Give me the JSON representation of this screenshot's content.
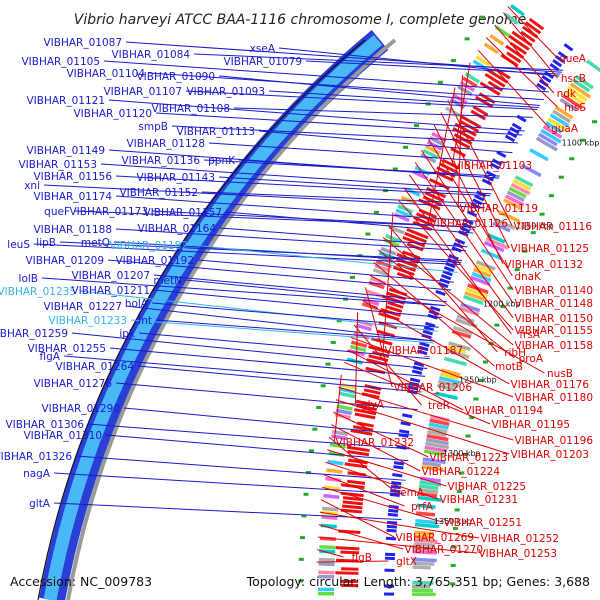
{
  "title": "Vibrio harveyi ATCC BAA-1116 chromosome I, complete genome",
  "footer": {
    "accession": "Accession: NC_009783",
    "summary": "Topology: circular; Length: 3,765,351 bp; Genes: 3,688"
  },
  "colors": {
    "blue_label": "#1a1acc",
    "cyan_label": "#33b5e5",
    "red_label": "#dd0000",
    "backbone": "#3fa9f5",
    "forward": "#2222ee",
    "reverse": "#ee1111"
  },
  "kbp_ticks": [
    "1100 kbp",
    "1150 kbp",
    "1200 kbp",
    "1250 kbp",
    "1300 kbp",
    "1350 kbp"
  ],
  "labels_left": [
    {
      "text": "VIBHAR_01087",
      "color": "blue"
    },
    {
      "text": "VIBHAR_01084",
      "color": "blue"
    },
    {
      "text": "xseA",
      "color": "blue"
    },
    {
      "text": "VIBHAR_01105",
      "color": "blue"
    },
    {
      "text": "VIBHAR_01079",
      "color": "blue"
    },
    {
      "text": "VIBHAR_01104",
      "color": "blue"
    },
    {
      "text": "VIBHAR_01090",
      "color": "blue"
    },
    {
      "text": "VIBHAR_01107",
      "color": "blue"
    },
    {
      "text": "VIBHAR_01093",
      "color": "blue"
    },
    {
      "text": "VIBHAR_01121",
      "color": "blue"
    },
    {
      "text": "VIBHAR_01108",
      "color": "blue"
    },
    {
      "text": "VIBHAR_01120",
      "color": "blue"
    },
    {
      "text": "smpB",
      "color": "blue"
    },
    {
      "text": "VIBHAR_01113",
      "color": "blue"
    },
    {
      "text": "VIBHAR_01128",
      "color": "blue"
    },
    {
      "text": "VIBHAR_01149",
      "color": "blue"
    },
    {
      "text": "VIBHAR_01136",
      "color": "blue"
    },
    {
      "text": "ppnK",
      "color": "blue"
    },
    {
      "text": "VIBHAR_01153",
      "color": "blue"
    },
    {
      "text": "VIBHAR_01156",
      "color": "blue"
    },
    {
      "text": "VIBHAR_01143",
      "color": "blue"
    },
    {
      "text": "xni",
      "color": "blue"
    },
    {
      "text": "VIBHAR_01152",
      "color": "blue"
    },
    {
      "text": "VIBHAR_01174",
      "color": "blue"
    },
    {
      "text": "queF",
      "color": "blue"
    },
    {
      "text": "VIBHAR_01173",
      "color": "blue"
    },
    {
      "text": "VIBHAR_01157",
      "color": "blue"
    },
    {
      "text": "VIBHAR_01188",
      "color": "blue"
    },
    {
      "text": "VIBHAR_01164",
      "color": "blue"
    },
    {
      "text": "leuS",
      "color": "blue"
    },
    {
      "text": "lipB",
      "color": "blue"
    },
    {
      "text": "metQ",
      "color": "blue"
    },
    {
      "text": "VIBHAR_01182",
      "color": "cyan"
    },
    {
      "text": "VIBHAR_01209",
      "color": "blue"
    },
    {
      "text": "VIBHAR_01192",
      "color": "blue"
    },
    {
      "text": "lolB",
      "color": "blue"
    },
    {
      "text": "VIBHAR_01207",
      "color": "blue"
    },
    {
      "text": "metN",
      "color": "blue"
    },
    {
      "text": "VIBHAR_01235",
      "color": "cyan"
    },
    {
      "text": "VIBHAR_01211",
      "color": "blue"
    },
    {
      "text": "VIBHAR_01227",
      "color": "blue"
    },
    {
      "text": "holA",
      "color": "blue"
    },
    {
      "text": "VIBHAR_01233",
      "color": "cyan"
    },
    {
      "text": "lnt",
      "color": "blue"
    },
    {
      "text": "VIBHAR_01259",
      "color": "blue"
    },
    {
      "text": "ipk",
      "color": "blue"
    },
    {
      "text": "VIBHAR_01255",
      "color": "blue"
    },
    {
      "text": "flgA",
      "color": "blue"
    },
    {
      "text": "VIBHAR_01264",
      "color": "blue"
    },
    {
      "text": "VIBHAR_01276",
      "color": "blue"
    },
    {
      "text": "VIBHAR_01290",
      "color": "blue"
    },
    {
      "text": "VIBHAR_01306",
      "color": "blue"
    },
    {
      "text": "VIBHAR_01310",
      "color": "blue"
    },
    {
      "text": "VIBHAR_01326",
      "color": "blue"
    },
    {
      "text": "nagA",
      "color": "blue"
    },
    {
      "text": "gltA",
      "color": "blue"
    }
  ],
  "labels_right": [
    "queA",
    "hscB",
    "ndk",
    "hisS",
    "guaA",
    "VIBHAR_01103",
    "VIBHAR_01119",
    "VIBHAR_01126",
    "VIBHAR_01116",
    "VIBHAR_01125",
    "VIBHAR_01132",
    "dnaK",
    "VIBHAR_01140",
    "VIBHAR_01148",
    "VIBHAR_01150",
    "frsA",
    "VIBHAR_01155",
    "VIBHAR_01187",
    "ribH",
    "VIBHAR_01158",
    "proA",
    "motB",
    "nusB",
    "VIBHAR_01206",
    "VIBHAR_01176",
    "glyA",
    "treR",
    "VIBHAR_01180",
    "VIBHAR_01194",
    "VIBHAR_01195",
    "VIBHAR_01232",
    "VIBHAR_01196",
    "VIBHAR_01203",
    "VIBHAR_01223",
    "VIBHAR_01224",
    "hemA",
    "VIBHAR_01225",
    "VIBHAR_01231",
    "prfA",
    "VIBHAR_01251",
    "VIBHAR_01269",
    "VIBHAR_01252",
    "VIBHAR_01270",
    "VIBHAR_01253",
    "flgB",
    "gltX"
  ]
}
